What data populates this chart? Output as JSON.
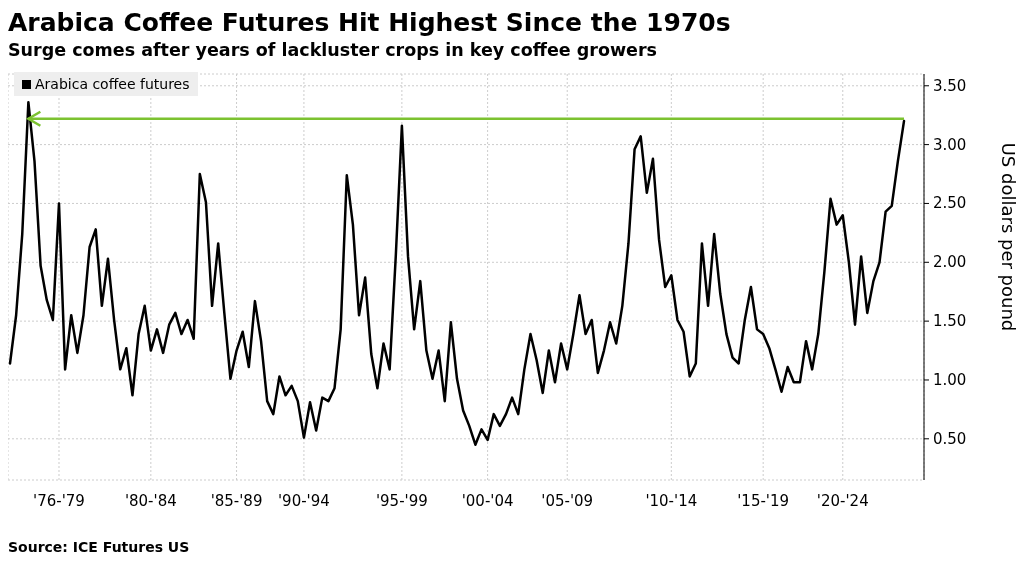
{
  "chart_data": {
    "type": "line",
    "title": "Arabica Coffee Futures Hit Highest Since the 1970s",
    "subtitle": "Surge comes after years of lackluster crops in key coffee growers",
    "ylabel": "US dollars per pound",
    "annotations": [
      "Source: ICE Futures US"
    ],
    "categories": [
      null,
      null,
      null,
      null,
      null,
      null,
      null,
      null,
      "'76-'79",
      null,
      null,
      null,
      null,
      null,
      null,
      null,
      null,
      null,
      null,
      null,
      null,
      null,
      null,
      "'80-'84",
      null,
      null,
      null,
      null,
      null,
      null,
      null,
      null,
      null,
      null,
      null,
      null,
      null,
      "'85-'89",
      null,
      null,
      null,
      null,
      null,
      null,
      null,
      null,
      null,
      null,
      "'90-'94",
      null,
      null,
      null,
      null,
      null,
      null,
      null,
      null,
      null,
      null,
      null,
      null,
      null,
      null,
      null,
      "'95-'99",
      null,
      null,
      null,
      null,
      null,
      null,
      null,
      null,
      null,
      null,
      null,
      null,
      null,
      "'00-'04",
      null,
      null,
      null,
      null,
      null,
      null,
      null,
      null,
      null,
      null,
      null,
      null,
      "'05-'09",
      null,
      null,
      null,
      null,
      null,
      null,
      null,
      null,
      null,
      null,
      null,
      null,
      null,
      null,
      null,
      null,
      "'10-'14",
      null,
      null,
      null,
      null,
      null,
      null,
      null,
      null,
      null,
      null,
      null,
      null,
      null,
      null,
      "'15-'19",
      null,
      null,
      null,
      null,
      null,
      null,
      null,
      null,
      null,
      null,
      null,
      null,
      "'20-'24",
      null,
      null,
      null,
      null,
      null,
      null,
      null,
      null,
      null,
      null
    ],
    "series": [
      {
        "name": "Arabica coffee futures",
        "color": "#000000",
        "values": [
          1.14,
          1.55,
          2.24,
          3.36,
          2.86,
          1.97,
          1.68,
          1.51,
          2.5,
          1.09,
          1.55,
          1.23,
          1.55,
          2.13,
          2.28,
          1.63,
          2.03,
          1.51,
          1.09,
          1.27,
          0.87,
          1.39,
          1.63,
          1.25,
          1.43,
          1.23,
          1.47,
          1.57,
          1.39,
          1.51,
          1.35,
          2.75,
          2.51,
          1.63,
          2.16,
          1.57,
          1.01,
          1.25,
          1.41,
          1.11,
          1.67,
          1.33,
          0.82,
          0.71,
          1.03,
          0.87,
          0.95,
          0.82,
          0.51,
          0.81,
          0.57,
          0.85,
          0.82,
          0.93,
          1.43,
          2.74,
          2.32,
          1.55,
          1.87,
          1.22,
          0.93,
          1.31,
          1.09,
          2.05,
          3.16,
          2.05,
          1.43,
          1.84,
          1.25,
          1.01,
          1.25,
          0.82,
          1.49,
          1.01,
          0.74,
          0.61,
          0.45,
          0.58,
          0.49,
          0.71,
          0.61,
          0.71,
          0.85,
          0.71,
          1.09,
          1.39,
          1.17,
          0.89,
          1.25,
          0.98,
          1.31,
          1.09,
          1.39,
          1.72,
          1.39,
          1.51,
          1.06,
          1.25,
          1.49,
          1.31,
          1.63,
          2.16,
          2.96,
          3.07,
          2.59,
          2.88,
          2.19,
          1.79,
          1.89,
          1.51,
          1.41,
          1.03,
          1.14,
          2.16,
          1.63,
          2.24,
          1.73,
          1.39,
          1.19,
          1.14,
          1.51,
          1.79,
          1.43,
          1.39,
          1.27,
          1.09,
          0.9,
          1.11,
          0.98,
          0.98,
          1.33,
          1.09,
          1.39,
          1.92,
          2.54,
          2.32,
          2.4,
          2.0,
          1.47,
          2.05,
          1.57,
          1.84,
          2.0,
          2.43,
          2.48,
          2.86,
          3.2
        ]
      }
    ],
    "ylim": [
      0.15,
      3.6
    ],
    "yticks": [
      {
        "value": 0.5,
        "label": "0.50"
      },
      {
        "value": 1,
        "label": "1.00"
      },
      {
        "value": 1.5,
        "label": "1.50"
      },
      {
        "value": 2,
        "label": "2.00"
      },
      {
        "value": 2.5,
        "label": "2.50"
      },
      {
        "value": 3,
        "label": "3.00"
      },
      {
        "value": 3.5,
        "label": "3.50"
      }
    ],
    "ref_lines": [
      {
        "axis": "y",
        "value": 3.22,
        "color": "#7cc230"
      }
    ],
    "grid": true,
    "legend": "top left",
    "marker": "none",
    "line_style": "solid"
  }
}
